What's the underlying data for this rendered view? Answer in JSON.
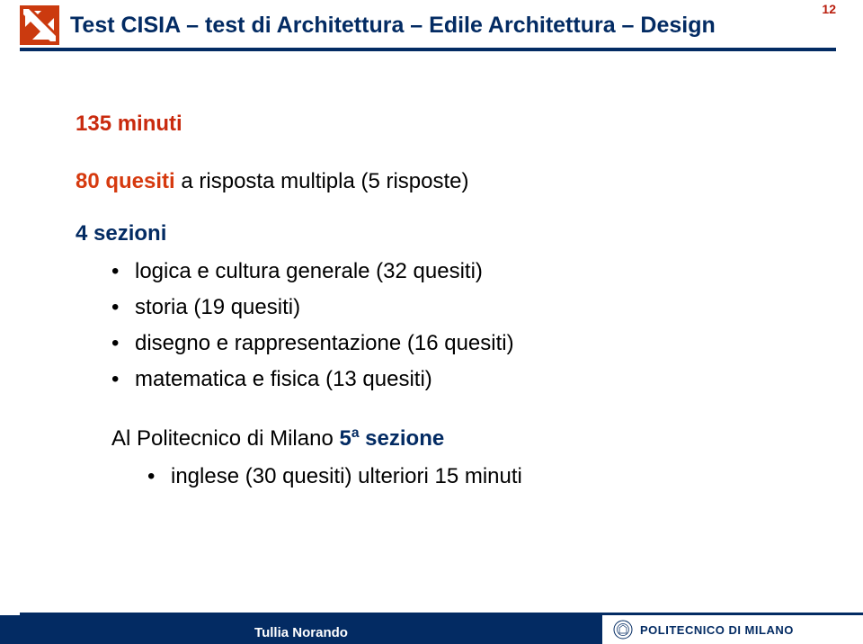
{
  "colors": {
    "navy": "#032b63",
    "red": "#b91d0d",
    "minutes": "#c92a0e",
    "quesiti": "#d63a0f",
    "sections": "#032b63",
    "sezione5": "#032b63",
    "footer_left": "#032b63",
    "footer_right": "#ffffff",
    "footer_topline": "#032b63",
    "page_num": "#b91d0d",
    "polimi_text": "#032b63"
  },
  "page_number": "12",
  "title": "Test CISIA – test di Architettura – Edile Architettura – Design",
  "minutes": "135 minuti",
  "quesiti_lead": "80 quesiti",
  "quesiti_rest": " a risposta multipla (5 risposte)",
  "sections_label": "4 sezioni",
  "bullets": [
    "logica e cultura generale (32 quesiti)",
    "storia (19 quesiti)",
    "disegno e rappresentazione (16 quesiti)",
    "matematica e fisica (13 quesiti)"
  ],
  "poli_prefix": "Al Politecnico di Milano ",
  "sezione5_num": "5",
  "sezione5_sup": "a",
  "sezione5_word": " sezione",
  "bullets2": [
    "inglese  (30 quesiti) ulteriori 15 minuti"
  ],
  "author": "Tullia Norando",
  "polimi_label": "POLITECNICO DI MILANO"
}
